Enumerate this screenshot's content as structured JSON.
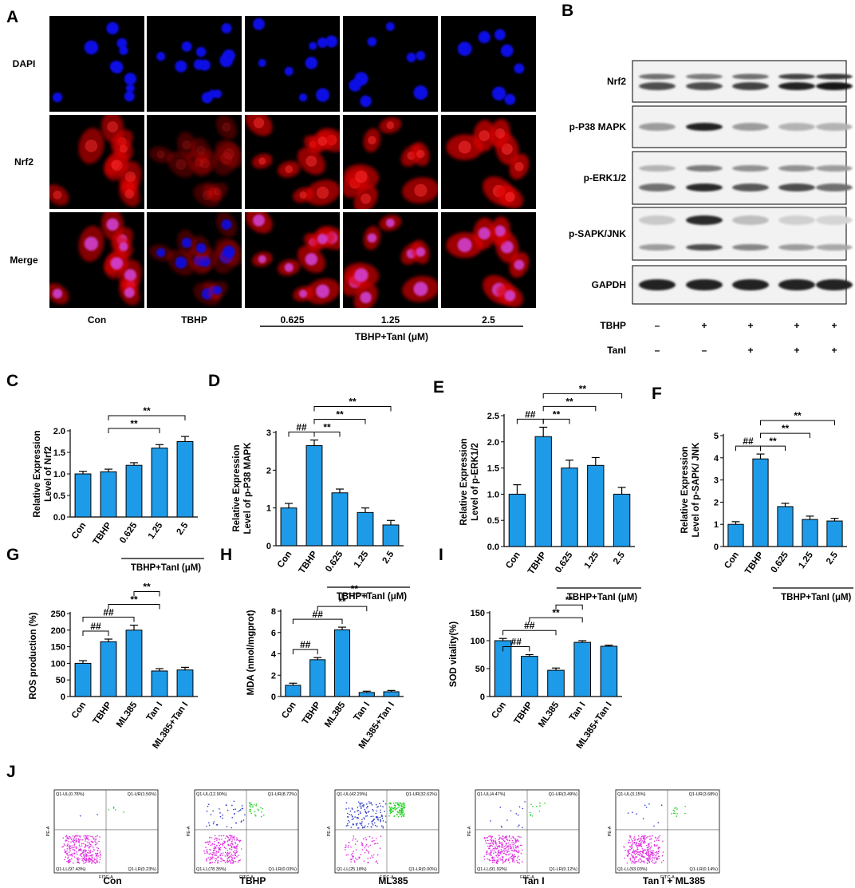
{
  "panel_labels": [
    "A",
    "B",
    "C",
    "D",
    "E",
    "F",
    "G",
    "H",
    "I",
    "J"
  ],
  "panel_a": {
    "rows": [
      "DAPI",
      "Nrf2",
      "Merge"
    ],
    "columns": [
      "Con",
      "TBHP",
      "0.625",
      "1.25",
      "2.5"
    ],
    "group_label": "TBHP+TanI (μM)",
    "colors": {
      "dapi": "#1010e6",
      "nrf2": "#e00000",
      "merge_nucleus": "#d040d0"
    }
  },
  "panel_b": {
    "bands": [
      "Nrf2",
      "p-P38 MAPK",
      "p-ERK1/2",
      "p-SAPK/JNK",
      "GAPDH"
    ],
    "conditions": [
      {
        "label": "TBHP",
        "values": [
          "–",
          "+",
          "+",
          "+",
          "+"
        ]
      },
      {
        "label": "TanI",
        "values": [
          "–",
          "–",
          "+",
          "+",
          "+"
        ]
      }
    ],
    "intensity": {
      "nrf2_upper": [
        0.55,
        0.5,
        0.55,
        0.75,
        0.8
      ],
      "nrf2_lower": [
        0.7,
        0.7,
        0.75,
        0.9,
        0.95
      ],
      "p38": [
        0.35,
        0.9,
        0.35,
        0.25,
        0.25
      ],
      "erk_upper": [
        0.25,
        0.5,
        0.4,
        0.4,
        0.35
      ],
      "erk_lower": [
        0.55,
        0.85,
        0.65,
        0.7,
        0.55
      ],
      "jnk_upper": [
        0.15,
        0.85,
        0.2,
        0.12,
        0.1
      ],
      "jnk_lower": [
        0.35,
        0.7,
        0.45,
        0.35,
        0.3
      ],
      "gapdh": [
        0.9,
        0.9,
        0.9,
        0.9,
        0.9
      ]
    }
  },
  "chart_data": [
    {
      "panel": "C",
      "type": "bar",
      "categories": [
        "Con",
        "TBHP",
        "0.625",
        "1.25",
        "2.5"
      ],
      "values": [
        1.0,
        1.05,
        1.2,
        1.6,
        1.75
      ],
      "errors": [
        0.06,
        0.06,
        0.06,
        0.08,
        0.12
      ],
      "ylabel": "Relative Expression\nLevel of Nrf2",
      "ylim": [
        0,
        2.0
      ],
      "yticks": [
        "0.0",
        "0.5",
        "1.0",
        "1.5",
        "2.0"
      ],
      "group_label": "TBHP+TanI (μM)",
      "significance": [
        {
          "from": 1,
          "to": 3,
          "label": "**"
        },
        {
          "from": 1,
          "to": 4,
          "label": "**"
        }
      ]
    },
    {
      "panel": "D",
      "type": "bar",
      "categories": [
        "Con",
        "TBHP",
        "0.625",
        "1.25",
        "2.5"
      ],
      "values": [
        1.0,
        2.65,
        1.4,
        0.88,
        0.55
      ],
      "errors": [
        0.12,
        0.15,
        0.1,
        0.12,
        0.12
      ],
      "ylabel": "Relative Expression\nLevel of p-P38 MAPK",
      "ylim": [
        0,
        3
      ],
      "yticks": [
        "0",
        "1",
        "2",
        "3"
      ],
      "group_label": "TBHP+TanI (μM)",
      "significance": [
        {
          "from": 0,
          "to": 1,
          "label": "##"
        },
        {
          "from": 1,
          "to": 2,
          "label": "**"
        },
        {
          "from": 1,
          "to": 3,
          "label": "**"
        },
        {
          "from": 1,
          "to": 4,
          "label": "**"
        }
      ]
    },
    {
      "panel": "E",
      "type": "bar",
      "categories": [
        "Con",
        "TBHP",
        "0.625",
        "1.25",
        "2.5"
      ],
      "values": [
        1.0,
        2.1,
        1.5,
        1.55,
        1.0
      ],
      "errors": [
        0.18,
        0.18,
        0.15,
        0.15,
        0.13
      ],
      "ylabel": "Relative Expression\nLevel of p-ERK1/2",
      "ylim": [
        0,
        2.5
      ],
      "yticks": [
        "0.0",
        "0.5",
        "1.0",
        "1.5",
        "2.0",
        "2.5"
      ],
      "group_label": "TBHP+TanI (μM)",
      "significance": [
        {
          "from": 0,
          "to": 1,
          "label": "##"
        },
        {
          "from": 1,
          "to": 2,
          "label": "**"
        },
        {
          "from": 1,
          "to": 3,
          "label": "**"
        },
        {
          "from": 1,
          "to": 4,
          "label": "**"
        }
      ]
    },
    {
      "panel": "F",
      "type": "bar",
      "categories": [
        "Con",
        "TBHP",
        "0.625",
        "1.25",
        "2.5"
      ],
      "values": [
        1.0,
        3.95,
        1.8,
        1.22,
        1.15
      ],
      "errors": [
        0.12,
        0.22,
        0.15,
        0.15,
        0.12
      ],
      "ylabel": "Relative Expression\nLevel of p-SAPK/ JNK",
      "ylim": [
        0,
        5
      ],
      "yticks": [
        "0",
        "1",
        "2",
        "3",
        "4",
        "5"
      ],
      "group_label": "TBHP+TanI (μM)",
      "significance": [
        {
          "from": 0,
          "to": 1,
          "label": "##"
        },
        {
          "from": 1,
          "to": 2,
          "label": "**"
        },
        {
          "from": 1,
          "to": 3,
          "label": "**"
        },
        {
          "from": 1,
          "to": 4,
          "label": "**"
        }
      ]
    },
    {
      "panel": "G",
      "type": "bar",
      "categories": [
        "Con",
        "TBHP",
        "ML385",
        "Tan I",
        "ML385+Tan I"
      ],
      "values": [
        100,
        165,
        200,
        77,
        80
      ],
      "errors": [
        8,
        8,
        15,
        7,
        8
      ],
      "ylabel": "ROS production (%)",
      "ylim": [
        0,
        250
      ],
      "yticks": [
        "0",
        "50",
        "100",
        "150",
        "200",
        "250"
      ],
      "significance": [
        {
          "from": 0,
          "to": 1,
          "label": "##"
        },
        {
          "from": 0,
          "to": 2,
          "label": "##"
        },
        {
          "from": 1,
          "to": 3,
          "label": "**"
        },
        {
          "from": 2,
          "to": 3,
          "label": "**"
        }
      ]
    },
    {
      "panel": "H",
      "type": "bar",
      "categories": [
        "Con",
        "TBHP",
        "ML385",
        "Tan I",
        "ML385+Tan I"
      ],
      "values": [
        1.05,
        3.45,
        6.25,
        0.38,
        0.45
      ],
      "errors": [
        0.2,
        0.2,
        0.25,
        0.12,
        0.12
      ],
      "ylabel": "MDA (nmol/mgprot)",
      "ylim": [
        0,
        8
      ],
      "yticks": [
        "0",
        "2",
        "4",
        "6",
        "8"
      ],
      "significance": [
        {
          "from": 0,
          "to": 1,
          "label": "##"
        },
        {
          "from": 0,
          "to": 2,
          "label": "##"
        },
        {
          "from": 1,
          "to": 3,
          "label": "**"
        },
        {
          "from": 2,
          "to": 3,
          "label": "**"
        }
      ]
    },
    {
      "panel": "I",
      "type": "bar",
      "categories": [
        "Con",
        "TBHP",
        "ML385",
        "Tan I",
        "ML385+Tan I"
      ],
      "values": [
        100,
        72,
        47,
        97,
        90
      ],
      "errors": [
        4,
        3,
        4,
        3,
        2
      ],
      "ylabel": "SOD vitality(%)",
      "ylim": [
        0,
        150
      ],
      "yticks": [
        "0",
        "50",
        "100",
        "150"
      ],
      "significance": [
        {
          "from": 0,
          "to": 1,
          "label": "##"
        },
        {
          "from": 0,
          "to": 2,
          "label": "##"
        },
        {
          "from": 1,
          "to": 3,
          "label": "**"
        },
        {
          "from": 2,
          "to": 3,
          "label": "**"
        }
      ]
    },
    {
      "panel": "J",
      "type": "scatter",
      "plots": [
        {
          "label": "Con",
          "q1_ul": "Q1-UL(0.78%)",
          "q1_ur": "Q1-UR(1.56%)",
          "q1_ll": "Q1-LL(97.43%)",
          "q1_lr": "Q1-LR(0.23%)"
        },
        {
          "label": "TBHP",
          "q1_ul": "Q1-UL(12.90%)",
          "q1_ur": "Q1-UR(8.72%)",
          "q1_ll": "Q1-LL(78.35%)",
          "q1_lr": "Q1-LR(0.03%)"
        },
        {
          "label": "ML385",
          "q1_ul": "Q1-UL(42.29%)",
          "q1_ur": "Q1-UR(32.62%)",
          "q1_ll": "Q1-LL(25.18%)",
          "q1_lr": "Q1-LR(0.00%)"
        },
        {
          "label": "Tan I",
          "q1_ul": "Q1-UL(4.47%)",
          "q1_ur": "Q1-UR(3.49%)",
          "q1_ll": "Q1-LL(91.92%)",
          "q1_lr": "Q1-LR(0.12%)"
        },
        {
          "label": "Tan I + ML385",
          "q1_ul": "Q1-UL(3.15%)",
          "q1_ur": "Q1-UR(3.68%)",
          "q1_ll": "Q1-LL(93.03%)",
          "q1_lr": "Q1-LR(0.14%)"
        }
      ],
      "xlabel": "FITC-A",
      "ylabel": "PE-A"
    }
  ],
  "colors": {
    "bar": "#1e9be8",
    "magenta": "#e030e0",
    "blue_dots": "#2a3ac8",
    "green_dots": "#20d020"
  }
}
